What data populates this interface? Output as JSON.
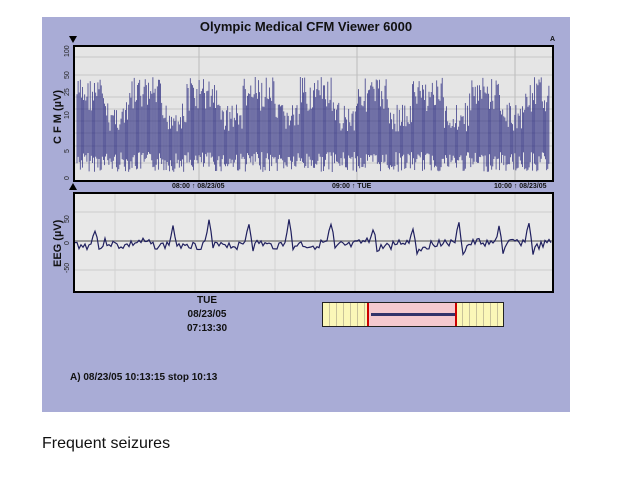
{
  "window": {
    "title": "Olympic Medical CFM Viewer 6000"
  },
  "cfm": {
    "axis_label": "C F M (µV)",
    "ticks": [
      "100",
      "50",
      "25",
      "10",
      "5",
      "0"
    ],
    "marker": "A",
    "trace_color": "#20207a"
  },
  "timeline": {
    "marks": [
      "08:00 ↑ 08/23/05",
      "09:00 ↑ TUE",
      "10:00 ↑ 08/23/05"
    ]
  },
  "eeg": {
    "axis_label": "EEG (µV)",
    "ticks": [
      "50",
      "0",
      "-50"
    ],
    "trace_color": "#20205f"
  },
  "cursor": {
    "day": "TUE",
    "date": "08/23/05",
    "time": "07:13:30"
  },
  "footer": {
    "event_text": "A) 08/23/05 10:13:15  stop 10:13"
  },
  "caption": "Frequent seizures"
}
